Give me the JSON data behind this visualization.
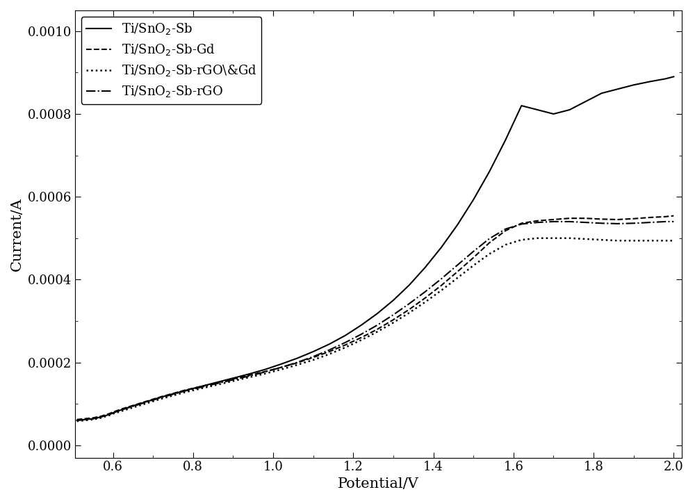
{
  "title": "",
  "xlabel": "Potential/V",
  "ylabel": "Current/A",
  "xlim": [
    0.505,
    2.02
  ],
  "ylim": [
    -3e-05,
    0.00105
  ],
  "yticks": [
    0.0,
    0.0002,
    0.0004,
    0.0006,
    0.0008,
    0.001
  ],
  "xticks": [
    0.6,
    0.8,
    1.0,
    1.2,
    1.4,
    1.6,
    1.8,
    2.0
  ],
  "background_color": "#ffffff",
  "line_color": "#000000",
  "series": [
    {
      "label": "Ti/SnO$_2$-Sb",
      "linestyle": "solid",
      "linewidth": 1.5,
      "x": [
        0.51,
        0.52,
        0.53,
        0.54,
        0.55,
        0.56,
        0.57,
        0.58,
        0.59,
        0.6,
        0.62,
        0.64,
        0.66,
        0.68,
        0.7,
        0.72,
        0.75,
        0.78,
        0.82,
        0.86,
        0.9,
        0.94,
        0.98,
        1.02,
        1.06,
        1.1,
        1.14,
        1.18,
        1.22,
        1.26,
        1.3,
        1.34,
        1.38,
        1.42,
        1.46,
        1.5,
        1.54,
        1.58,
        1.62,
        1.66,
        1.7,
        1.74,
        1.78,
        1.82,
        1.86,
        1.9,
        1.94,
        1.98,
        2.0
      ],
      "y": [
        6e-05,
        6.1e-05,
        6.2e-05,
        6.3e-05,
        6.4e-05,
        6.6e-05,
        6.8e-05,
        7.1e-05,
        7.4e-05,
        7.8e-05,
        8.5e-05,
        9.2e-05,
        9.8e-05,
        0.000104,
        0.00011,
        0.000116,
        0.000124,
        0.000132,
        0.000142,
        0.000152,
        0.000162,
        0.000172,
        0.000183,
        0.000196,
        0.00021,
        0.000226,
        0.000244,
        0.000265,
        0.00029,
        0.000318,
        0.00035,
        0.000387,
        0.00043,
        0.000478,
        0.000532,
        0.000593,
        0.000661,
        0.000737,
        0.00082,
        0.00081,
        0.0008,
        0.00081,
        0.00083,
        0.00085,
        0.00086,
        0.00087,
        0.000878,
        0.000885,
        0.00089
      ]
    },
    {
      "label": "Ti/SnO$_2$-Sb-Gd",
      "linestyle": "dashed",
      "linewidth": 1.5,
      "x": [
        0.51,
        0.52,
        0.53,
        0.54,
        0.55,
        0.56,
        0.57,
        0.58,
        0.59,
        0.6,
        0.62,
        0.64,
        0.66,
        0.68,
        0.7,
        0.72,
        0.75,
        0.78,
        0.82,
        0.86,
        0.9,
        0.94,
        0.98,
        1.02,
        1.06,
        1.1,
        1.14,
        1.18,
        1.22,
        1.26,
        1.3,
        1.34,
        1.38,
        1.42,
        1.46,
        1.5,
        1.54,
        1.58,
        1.62,
        1.66,
        1.7,
        1.74,
        1.78,
        1.82,
        1.86,
        1.9,
        1.94,
        1.98,
        2.0
      ],
      "y": [
        6.2e-05,
        6.3e-05,
        6.4e-05,
        6.5e-05,
        6.6e-05,
        6.8e-05,
        7e-05,
        7.3e-05,
        7.6e-05,
        8e-05,
        8.7e-05,
        9.3e-05,
        9.9e-05,
        0.000105,
        0.000111,
        0.000117,
        0.000125,
        0.000133,
        0.000142,
        0.000151,
        0.00016,
        0.000169,
        0.000178,
        0.000188,
        0.000199,
        0.000212,
        0.000226,
        0.000242,
        0.00026,
        0.00028,
        0.000303,
        0.000328,
        0.000356,
        0.000386,
        0.000419,
        0.000453,
        0.000489,
        0.000518,
        0.000536,
        0.000542,
        0.000545,
        0.000548,
        0.000548,
        0.000546,
        0.000545,
        0.000547,
        0.00055,
        0.000552,
        0.000554
      ]
    },
    {
      "label": "Ti/SnO$_2$-Sb-rGO\\&Gd",
      "linestyle": "dotted",
      "linewidth": 1.8,
      "x": [
        0.51,
        0.52,
        0.53,
        0.54,
        0.55,
        0.56,
        0.57,
        0.58,
        0.59,
        0.6,
        0.62,
        0.64,
        0.66,
        0.68,
        0.7,
        0.72,
        0.75,
        0.78,
        0.82,
        0.86,
        0.9,
        0.94,
        0.98,
        1.02,
        1.06,
        1.1,
        1.14,
        1.18,
        1.22,
        1.26,
        1.3,
        1.34,
        1.38,
        1.42,
        1.46,
        1.5,
        1.54,
        1.58,
        1.62,
        1.66,
        1.7,
        1.74,
        1.78,
        1.82,
        1.86,
        1.9,
        1.94,
        1.98,
        2.0
      ],
      "y": [
        5.8e-05,
        5.9e-05,
        6e-05,
        6.1e-05,
        6.2e-05,
        6.4e-05,
        6.6e-05,
        6.9e-05,
        7.2e-05,
        7.6e-05,
        8.2e-05,
        8.8e-05,
        9.4e-05,
        0.0001,
        0.000106,
        0.000112,
        0.00012,
        0.000128,
        0.000137,
        0.000146,
        0.000155,
        0.000164,
        0.000173,
        0.000183,
        0.000194,
        0.000206,
        0.00022,
        0.000236,
        0.000254,
        0.000274,
        0.000296,
        0.00032,
        0.000346,
        0.000374,
        0.000404,
        0.000434,
        0.000462,
        0.000484,
        0.000496,
        0.0005,
        0.0005,
        0.0005,
        0.000498,
        0.000496,
        0.000494,
        0.000494,
        0.000494,
        0.000494,
        0.000494
      ]
    },
    {
      "label": "Ti/SnO$_2$-Sb-rGO",
      "linestyle": "dashdot",
      "linewidth": 1.5,
      "x": [
        0.51,
        0.52,
        0.53,
        0.54,
        0.55,
        0.56,
        0.57,
        0.58,
        0.59,
        0.6,
        0.62,
        0.64,
        0.66,
        0.68,
        0.7,
        0.72,
        0.75,
        0.78,
        0.82,
        0.86,
        0.9,
        0.94,
        0.98,
        1.02,
        1.06,
        1.1,
        1.14,
        1.18,
        1.22,
        1.26,
        1.3,
        1.34,
        1.38,
        1.42,
        1.46,
        1.5,
        1.54,
        1.58,
        1.62,
        1.66,
        1.7,
        1.74,
        1.78,
        1.82,
        1.86,
        1.9,
        1.94,
        1.98,
        2.0
      ],
      "y": [
        6e-05,
        6.1e-05,
        6.2e-05,
        6.3e-05,
        6.4e-05,
        6.6e-05,
        6.8e-05,
        7.1e-05,
        7.4e-05,
        7.8e-05,
        8.5e-05,
        9.1e-05,
        9.7e-05,
        0.000103,
        0.000109,
        0.000115,
        0.000123,
        0.000131,
        0.00014,
        0.000149,
        0.000158,
        0.000167,
        0.000177,
        0.000188,
        0.0002,
        0.000214,
        0.00023,
        0.000248,
        0.000268,
        0.00029,
        0.000315,
        0.000342,
        0.000371,
        0.000402,
        0.000435,
        0.000468,
        0.000499,
        0.000522,
        0.000534,
        0.000538,
        0.00054,
        0.00054,
        0.000538,
        0.000536,
        0.000535,
        0.000536,
        0.000538,
        0.00054,
        0.00054
      ]
    }
  ],
  "legend_loc": "upper left",
  "legend_fontsize": 13,
  "axis_fontsize": 15,
  "tick_fontsize": 13
}
